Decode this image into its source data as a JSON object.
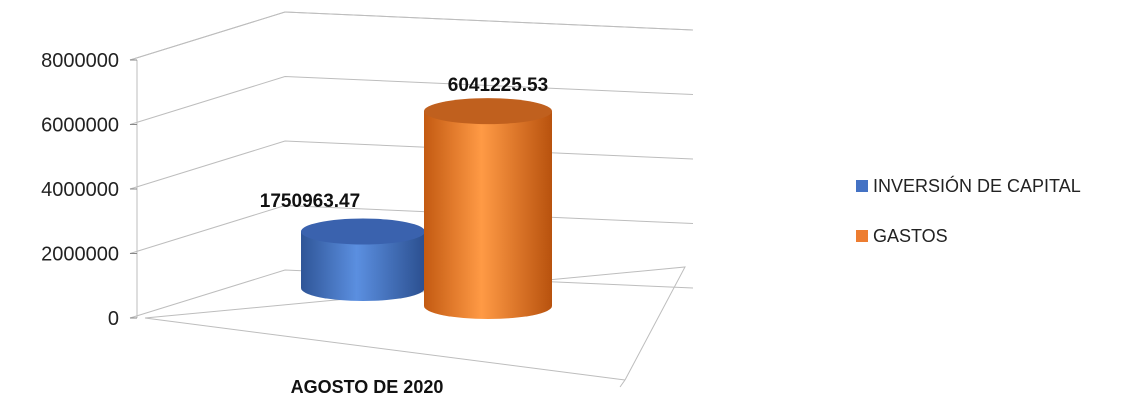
{
  "chart_data": {
    "type": "bar",
    "categories": [
      "AGOSTO DE 2020"
    ],
    "series": [
      {
        "name": "INVERSIÓN DE CAPITAL",
        "values": [
          1750963.47
        ],
        "label": "1750963.47",
        "color": "#4472C4"
      },
      {
        "name": "GASTOS",
        "values": [
          6041225.53
        ],
        "label": "6041225.53",
        "color": "#ED7D31"
      }
    ],
    "yticks": [
      "0",
      "2000000",
      "4000000",
      "6000000",
      "8000000"
    ],
    "ylim": [
      0,
      8000000
    ],
    "grid": true,
    "legend": "right",
    "style": "3d-cylinder"
  }
}
